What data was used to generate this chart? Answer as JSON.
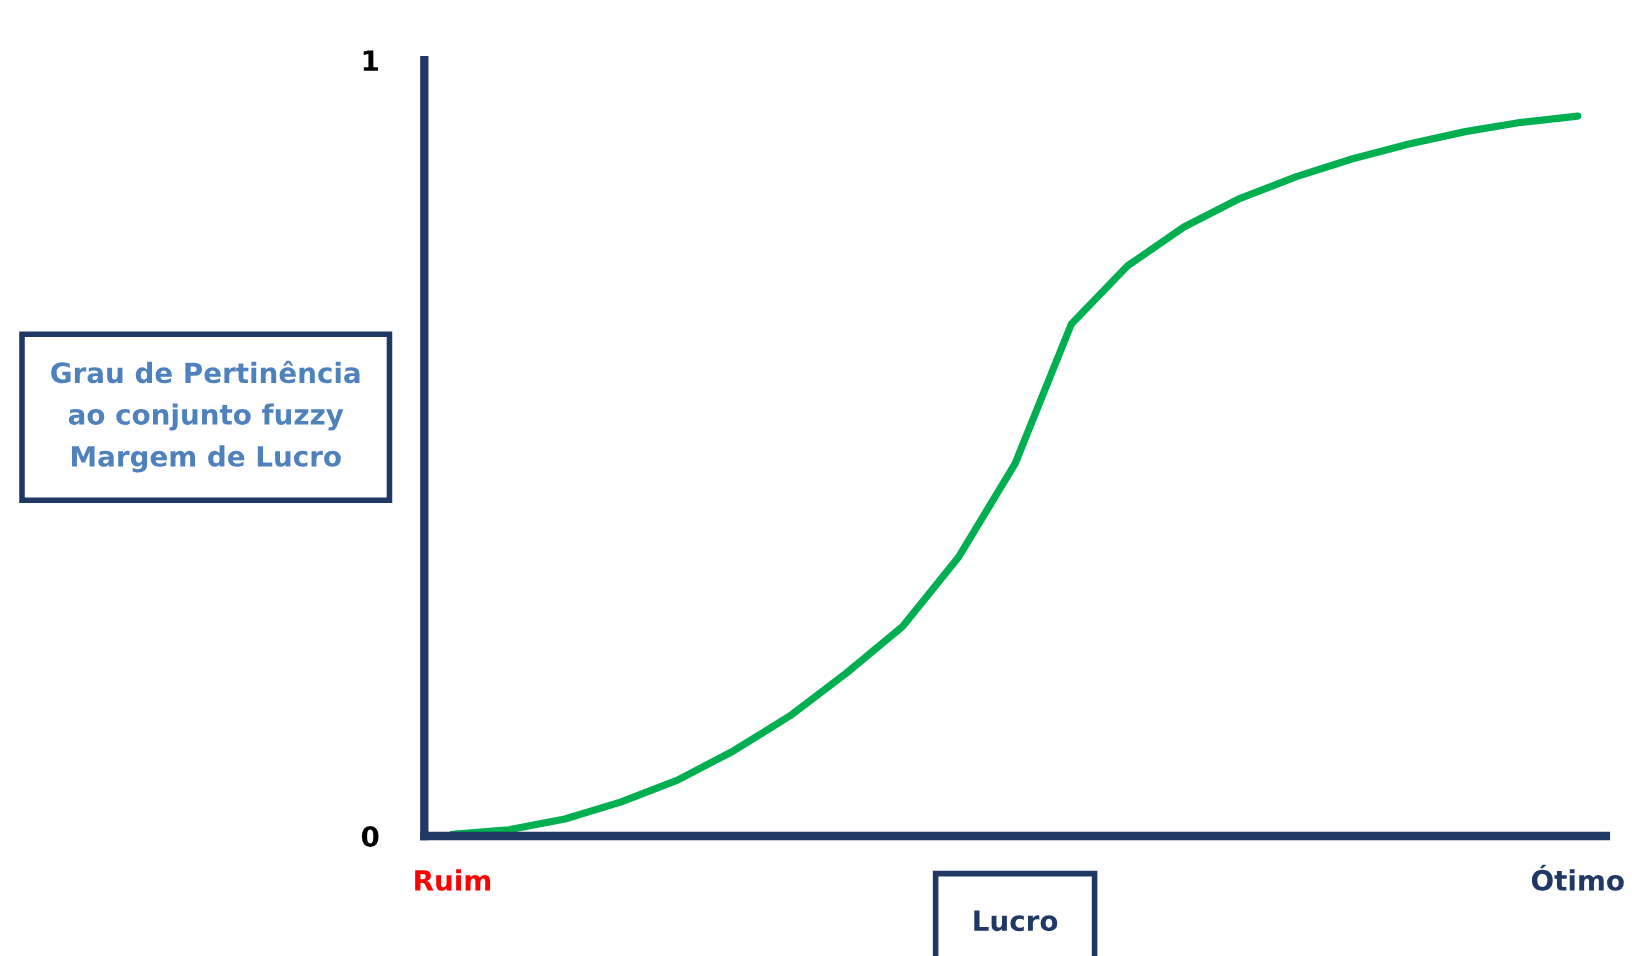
{
  "chart_data": {
    "type": "line",
    "xlabel": "Lucro",
    "ylabel": "Grau de Pertinência\nao conjunto fuzzy\nMargem de Lucro",
    "categories": [
      "Ruim",
      null,
      null,
      null,
      null,
      null,
      null,
      null,
      null,
      null,
      null,
      null,
      null,
      null,
      null,
      null,
      null,
      null,
      null,
      null,
      "Ótimo"
    ],
    "series": [
      {
        "color": "#00b050",
        "values": [
          0.002,
          0.008,
          0.022,
          0.044,
          0.072,
          0.11,
          0.155,
          0.21,
          0.27,
          0.36,
          0.48,
          0.66,
          0.735,
          0.785,
          0.822,
          0.85,
          0.873,
          0.892,
          0.908,
          0.92,
          0.928
        ]
      }
    ],
    "ylim": [
      0,
      1
    ],
    "yticks": [
      0,
      1
    ],
    "grid": false,
    "legend": false,
    "marker": "none",
    "line_style": "solid"
  }
}
